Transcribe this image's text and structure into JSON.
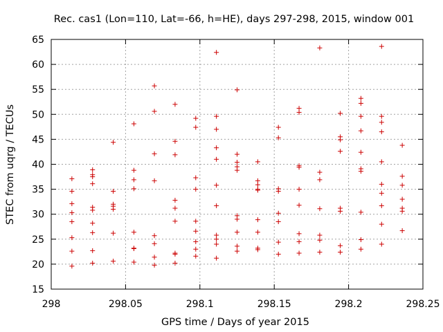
{
  "chart_data": {
    "type": "scatter",
    "title": "Rec. cas1 (Lon=110, Lat=-66, h=HE), days 297-298, 2015, window 001",
    "xlabel": "GPS time / Days of year 2015",
    "ylabel": "STEC from uqrg / TECUs",
    "xlim": [
      298,
      298.25
    ],
    "ylim": [
      15,
      65
    ],
    "x_ticks": [
      "298",
      "298.05",
      "298.1",
      "298.15",
      "298.2",
      "298.25"
    ],
    "y_ticks": [
      "15",
      "20",
      "25",
      "30",
      "35",
      "40",
      "45",
      "50",
      "55",
      "60",
      "65"
    ],
    "grid": true,
    "marker": "+",
    "marker_color": "#cc0000",
    "series": [
      {
        "points": [
          [
            298.0139,
            19.6
          ],
          [
            298.0139,
            22.6
          ],
          [
            298.0139,
            25.3
          ],
          [
            298.0139,
            28.5
          ],
          [
            298.0139,
            30.3
          ],
          [
            298.0139,
            32.1
          ],
          [
            298.0139,
            34.6
          ],
          [
            298.0139,
            37.1
          ],
          [
            298.0278,
            20.2
          ],
          [
            298.0278,
            22.7
          ],
          [
            298.0278,
            26.3
          ],
          [
            298.0278,
            28.2
          ],
          [
            298.0278,
            30.8
          ],
          [
            298.0278,
            31.4
          ],
          [
            298.0278,
            36.1
          ],
          [
            298.0278,
            37.5
          ],
          [
            298.0278,
            37.9
          ],
          [
            298.0278,
            38.9
          ],
          [
            298.0417,
            20.6
          ],
          [
            298.0417,
            26.2
          ],
          [
            298.0417,
            31.0
          ],
          [
            298.0417,
            31.6
          ],
          [
            298.0417,
            32.0
          ],
          [
            298.0417,
            34.6
          ],
          [
            298.0417,
            44.4
          ],
          [
            298.0556,
            20.4
          ],
          [
            298.0556,
            23.1
          ],
          [
            298.0556,
            23.2
          ],
          [
            298.0556,
            26.4
          ],
          [
            298.0556,
            35.1
          ],
          [
            298.0556,
            36.9
          ],
          [
            298.0556,
            38.8
          ],
          [
            298.0556,
            48.1
          ],
          [
            298.0694,
            19.8
          ],
          [
            298.0694,
            21.4
          ],
          [
            298.0694,
            24.1
          ],
          [
            298.0694,
            25.7
          ],
          [
            298.0694,
            36.7
          ],
          [
            298.0694,
            42.1
          ],
          [
            298.0694,
            50.6
          ],
          [
            298.0694,
            55.7
          ],
          [
            298.0833,
            20.2
          ],
          [
            298.0833,
            22.0
          ],
          [
            298.0833,
            22.2
          ],
          [
            298.0833,
            28.6
          ],
          [
            298.0833,
            31.2
          ],
          [
            298.0833,
            32.8
          ],
          [
            298.0833,
            41.9
          ],
          [
            298.0833,
            44.6
          ],
          [
            298.0833,
            52.0
          ],
          [
            298.0972,
            21.6
          ],
          [
            298.0972,
            23.0
          ],
          [
            298.0972,
            24.5
          ],
          [
            298.0972,
            26.6
          ],
          [
            298.0972,
            28.6
          ],
          [
            298.0972,
            35.0
          ],
          [
            298.0972,
            37.3
          ],
          [
            298.0972,
            47.4
          ],
          [
            298.0972,
            49.2
          ],
          [
            298.1111,
            21.2
          ],
          [
            298.1111,
            24.0
          ],
          [
            298.1111,
            25.0
          ],
          [
            298.1111,
            25.8
          ],
          [
            298.1111,
            31.7
          ],
          [
            298.1111,
            35.8
          ],
          [
            298.1111,
            41.0
          ],
          [
            298.1111,
            43.3
          ],
          [
            298.1111,
            47.0
          ],
          [
            298.1111,
            49.6
          ],
          [
            298.1111,
            62.4
          ],
          [
            298.125,
            22.6
          ],
          [
            298.125,
            23.6
          ],
          [
            298.125,
            26.4
          ],
          [
            298.125,
            29.0
          ],
          [
            298.125,
            29.7
          ],
          [
            298.125,
            38.8
          ],
          [
            298.125,
            39.5
          ],
          [
            298.125,
            40.4
          ],
          [
            298.125,
            42.0
          ],
          [
            298.125,
            54.9
          ],
          [
            298.1389,
            22.9
          ],
          [
            298.1389,
            23.2
          ],
          [
            298.1389,
            26.4
          ],
          [
            298.1389,
            28.9
          ],
          [
            298.1389,
            34.8
          ],
          [
            298.1389,
            35.0
          ],
          [
            298.1389,
            35.9
          ],
          [
            298.1389,
            36.7
          ],
          [
            298.1389,
            40.5
          ],
          [
            298.1528,
            22.0
          ],
          [
            298.1528,
            24.4
          ],
          [
            298.1528,
            28.5
          ],
          [
            298.1528,
            30.2
          ],
          [
            298.1528,
            34.6
          ],
          [
            298.1528,
            35.1
          ],
          [
            298.1528,
            45.3
          ],
          [
            298.1528,
            47.4
          ],
          [
            298.1667,
            22.2
          ],
          [
            298.1667,
            24.5
          ],
          [
            298.1667,
            26.1
          ],
          [
            298.1667,
            31.8
          ],
          [
            298.1667,
            35.0
          ],
          [
            298.1667,
            39.4
          ],
          [
            298.1667,
            39.7
          ],
          [
            298.1667,
            50.4
          ],
          [
            298.1667,
            51.2
          ],
          [
            298.1806,
            22.4
          ],
          [
            298.1806,
            24.8
          ],
          [
            298.1806,
            25.8
          ],
          [
            298.1806,
            31.1
          ],
          [
            298.1806,
            36.9
          ],
          [
            298.1806,
            38.4
          ],
          [
            298.1806,
            63.3
          ],
          [
            298.1944,
            22.4
          ],
          [
            298.1944,
            23.7
          ],
          [
            298.1944,
            30.6
          ],
          [
            298.1944,
            31.2
          ],
          [
            298.1944,
            42.6
          ],
          [
            298.1944,
            44.9
          ],
          [
            298.1944,
            45.5
          ],
          [
            298.1944,
            50.2
          ],
          [
            298.2083,
            23.0
          ],
          [
            298.2083,
            24.9
          ],
          [
            298.2083,
            30.4
          ],
          [
            298.2083,
            38.6
          ],
          [
            298.2083,
            39.1
          ],
          [
            298.2083,
            42.4
          ],
          [
            298.2083,
            46.7
          ],
          [
            298.2083,
            49.6
          ],
          [
            298.2083,
            52.2
          ],
          [
            298.2083,
            53.2
          ],
          [
            298.2222,
            24.0
          ],
          [
            298.2222,
            28.0
          ],
          [
            298.2222,
            31.7
          ],
          [
            298.2222,
            34.2
          ],
          [
            298.2222,
            36.0
          ],
          [
            298.2222,
            40.5
          ],
          [
            298.2222,
            46.5
          ],
          [
            298.2222,
            48.4
          ],
          [
            298.2222,
            49.6
          ],
          [
            298.2222,
            63.6
          ],
          [
            298.2361,
            26.7
          ],
          [
            298.2361,
            30.6
          ],
          [
            298.2361,
            31.2
          ],
          [
            298.2361,
            33.0
          ],
          [
            298.2361,
            35.8
          ],
          [
            298.2361,
            37.6
          ],
          [
            298.2361,
            43.8
          ]
        ]
      }
    ]
  }
}
